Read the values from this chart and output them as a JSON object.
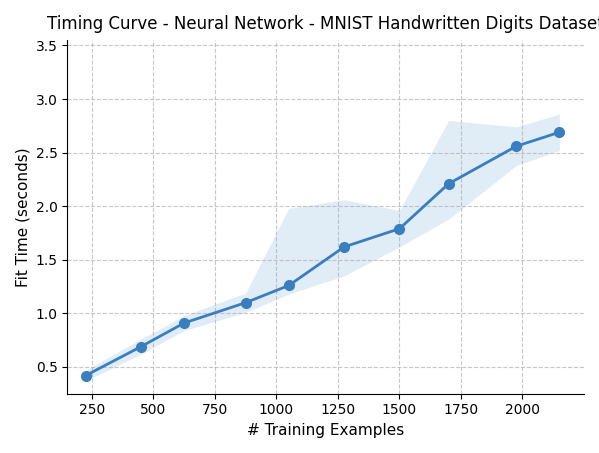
{
  "title": "Timing Curve - Neural Network - MNIST Handwritten Digits Dataset",
  "xlabel": "# Training Examples",
  "ylabel": "Fit Time (seconds)",
  "x": [
    225,
    450,
    625,
    875,
    1050,
    1275,
    1500,
    1700,
    1975,
    2150
  ],
  "y_mean": [
    0.42,
    0.69,
    0.91,
    1.1,
    1.26,
    1.62,
    1.79,
    2.21,
    2.56,
    2.69
  ],
  "y_lower": [
    0.37,
    0.62,
    0.84,
    1.01,
    1.18,
    1.35,
    1.62,
    1.88,
    2.38,
    2.52
  ],
  "y_upper": [
    0.47,
    0.76,
    0.98,
    1.19,
    1.98,
    2.06,
    1.96,
    2.8,
    2.74,
    2.86
  ],
  "line_color": "#3a7ebf",
  "fill_color": "#c8ddf0",
  "fill_alpha": 0.55,
  "ylim": [
    0.25,
    3.55
  ],
  "xlim": [
    150,
    2250
  ],
  "yticks": [
    0.5,
    1.0,
    1.5,
    2.0,
    2.5,
    3.0,
    3.5
  ],
  "xticks": [
    250,
    500,
    750,
    1000,
    1250,
    1500,
    1750,
    2000
  ],
  "marker": "o",
  "markersize": 7,
  "linewidth": 2,
  "title_fontsize": 12,
  "label_fontsize": 11,
  "tick_fontsize": 10,
  "grid_color": "#b0b0b0",
  "grid_linestyle": "--",
  "grid_alpha": 0.7
}
